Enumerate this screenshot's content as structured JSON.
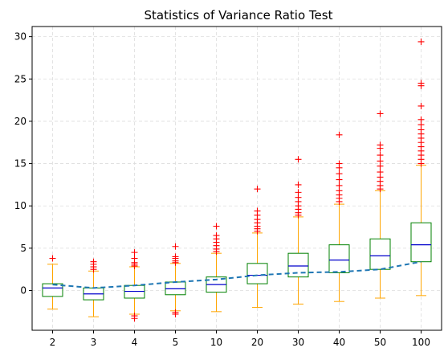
{
  "chart_data": {
    "type": "boxplot",
    "title": "Statistics of Variance Ratio Test",
    "xlabel": "",
    "ylabel": "",
    "categories": [
      "2",
      "3",
      "4",
      "5",
      "10",
      "20",
      "30",
      "40",
      "50",
      "100"
    ],
    "ylim": [
      -4.7,
      31.2
    ],
    "yticks": [
      0,
      5,
      10,
      15,
      20,
      25,
      30
    ],
    "grid": true,
    "legend": "none",
    "boxes": [
      {
        "category": "2",
        "whisker_low": -2.2,
        "q1": -0.7,
        "median": 0.3,
        "q3": 0.8,
        "whisker_high": 3.1,
        "outliers": [
          3.8
        ]
      },
      {
        "category": "3",
        "whisker_low": -3.1,
        "q1": -1.1,
        "median": -0.4,
        "q3": 0.3,
        "whisker_high": 2.3,
        "outliers": [
          2.5,
          2.8,
          3.1,
          3.4
        ]
      },
      {
        "category": "4",
        "whisker_low": -2.8,
        "q1": -0.9,
        "median": -0.1,
        "q3": 0.6,
        "whisker_high": 2.8,
        "outliers": [
          -3.0,
          -3.3,
          2.9,
          3.1,
          3.3,
          3.8,
          4.5
        ]
      },
      {
        "category": "5",
        "whisker_low": -2.4,
        "q1": -0.5,
        "median": 0.2,
        "q3": 1.0,
        "whisker_high": 3.2,
        "outliers": [
          -2.6,
          -2.8,
          3.3,
          3.5,
          3.8,
          4.0,
          5.2
        ]
      },
      {
        "category": "10",
        "whisker_low": -2.5,
        "q1": -0.2,
        "median": 0.7,
        "q3": 1.6,
        "whisker_high": 4.4,
        "outliers": [
          4.6,
          4.9,
          5.3,
          5.7,
          6.1,
          6.5,
          7.6
        ]
      },
      {
        "category": "20",
        "whisker_low": -2.0,
        "q1": 0.8,
        "median": 1.8,
        "q3": 3.2,
        "whisker_high": 6.8,
        "outliers": [
          7.0,
          7.3,
          7.6,
          8.0,
          8.4,
          8.9,
          9.4,
          12.0
        ]
      },
      {
        "category": "30",
        "whisker_low": -1.6,
        "q1": 1.6,
        "median": 2.9,
        "q3": 4.4,
        "whisker_high": 8.7,
        "outliers": [
          8.9,
          9.2,
          9.6,
          10.0,
          10.5,
          11.0,
          11.6,
          12.5,
          15.5
        ]
      },
      {
        "category": "40",
        "whisker_low": -1.3,
        "q1": 2.1,
        "median": 3.6,
        "q3": 5.4,
        "whisker_high": 10.2,
        "outliers": [
          10.5,
          10.9,
          11.3,
          11.8,
          12.4,
          13.1,
          13.8,
          14.5,
          15.0,
          18.4
        ]
      },
      {
        "category": "50",
        "whisker_low": -0.9,
        "q1": 2.5,
        "median": 4.1,
        "q3": 6.1,
        "whisker_high": 11.8,
        "outliers": [
          12.0,
          12.4,
          12.9,
          13.4,
          14.0,
          14.7,
          15.3,
          16.0,
          16.8,
          17.2,
          20.9
        ]
      },
      {
        "category": "100",
        "whisker_low": -0.6,
        "q1": 3.4,
        "median": 5.4,
        "q3": 8.0,
        "whisker_high": 14.8,
        "outliers": [
          15.0,
          15.5,
          16.0,
          16.5,
          17.0,
          17.5,
          18.0,
          18.5,
          19.0,
          19.6,
          20.2,
          21.8,
          24.2,
          24.5,
          29.4
        ]
      }
    ],
    "expected_line": [
      0.7,
      0.3,
      0.6,
      1.0,
      1.3,
      1.8,
      2.1,
      2.2,
      2.5,
      3.4
    ],
    "colors": {
      "box": "#008000",
      "median": "#0000cc",
      "whisker": "#ffa500",
      "outlier": "#ff0000",
      "expected_line": "#1f77b4",
      "grid": "#dddddd"
    }
  }
}
